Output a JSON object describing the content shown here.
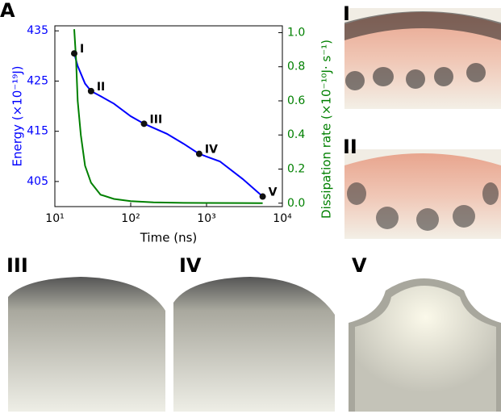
{
  "chart_data": {
    "type": "line",
    "panel_label": "A",
    "x_label": "Time (ns)",
    "y_label": "Energy (×10⁻¹⁹J)",
    "y2_label": "Dissipation rate (×10⁻¹⁰J· s⁻¹)",
    "log_x": true,
    "xlim": [
      10,
      10000
    ],
    "xticks": [
      {
        "value": 10,
        "label": "10¹"
      },
      {
        "value": 100,
        "label": "10²"
      },
      {
        "value": 1000,
        "label": "10³"
      },
      {
        "value": 10000,
        "label": "10⁴"
      }
    ],
    "ylim": [
      400,
      436
    ],
    "yticks": [
      405,
      415,
      425,
      435
    ],
    "y2lim": [
      -0.02,
      1.04
    ],
    "y2ticks": [
      {
        "value": 0,
        "label": "0.0"
      },
      0.2,
      0.4,
      0.6,
      0.8,
      {
        "value": 1,
        "label": "1.0"
      }
    ],
    "series": [
      {
        "color": "#0000ff",
        "x": [
          18,
          20,
          25,
          30,
          40,
          60,
          100,
          150,
          300,
          500,
          800,
          1500,
          3000,
          5500
        ],
        "values": [
          430.5,
          428,
          424.5,
          423,
          422,
          420.5,
          418,
          416.5,
          414.5,
          412.5,
          410.5,
          409,
          405.5,
          402
        ]
      },
      {
        "color": "#008000",
        "axis": "y2",
        "x": [
          18,
          19,
          20,
          22,
          25,
          30,
          40,
          60,
          100,
          200,
          500,
          1000,
          3000,
          5500
        ],
        "values": [
          1.02,
          0.85,
          0.6,
          0.4,
          0.22,
          0.12,
          0.05,
          0.025,
          0.012,
          0.005,
          0.002,
          0.001,
          0.0005,
          0.0003
        ]
      }
    ],
    "markers": {
      "x": [
        18,
        30,
        150,
        800,
        5500
      ],
      "values": [
        430.5,
        423,
        416.5,
        410.5,
        402
      ],
      "labels": [
        "I",
        "II",
        "III",
        "IV",
        "V"
      ]
    }
  },
  "panels": {
    "labels": [
      "I",
      "II",
      "III",
      "IV",
      "V"
    ]
  }
}
